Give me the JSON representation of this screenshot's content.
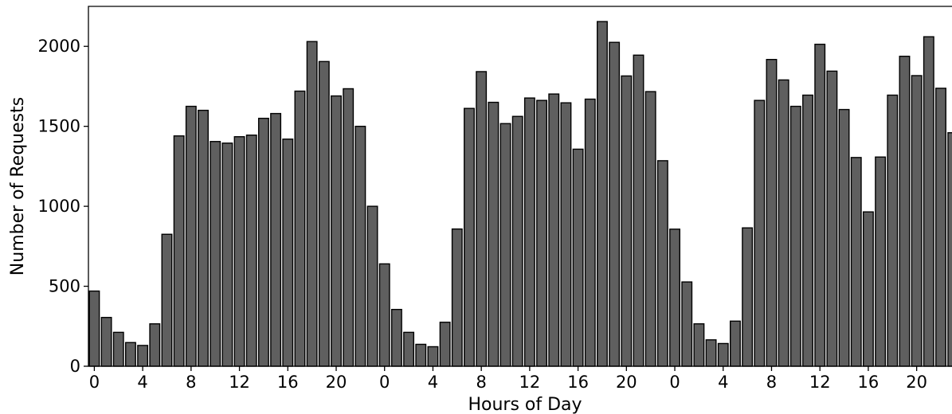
{
  "chart_data": {
    "type": "bar",
    "title": "",
    "xlabel": "Hours of Day",
    "ylabel": "Number of Requests",
    "ylim": [
      0,
      2250
    ],
    "yticks": [
      0,
      500,
      1000,
      1500,
      2000
    ],
    "xtick_labels": [
      "0",
      "4",
      "8",
      "12",
      "16",
      "20",
      "0",
      "4",
      "8",
      "12",
      "16",
      "20",
      "0",
      "4",
      "8",
      "12",
      "16",
      "20"
    ],
    "categories": [
      0,
      1,
      2,
      3,
      4,
      5,
      6,
      7,
      8,
      9,
      10,
      11,
      12,
      13,
      14,
      15,
      16,
      17,
      18,
      19,
      20,
      21,
      22,
      23,
      0,
      1,
      2,
      3,
      4,
      5,
      6,
      7,
      8,
      9,
      10,
      11,
      12,
      13,
      14,
      15,
      16,
      17,
      18,
      19,
      20,
      21,
      22,
      23,
      0,
      1,
      2,
      3,
      4,
      5,
      6,
      7,
      8,
      9,
      10,
      11,
      12,
      13,
      14,
      15,
      16,
      17,
      18,
      19,
      20,
      21,
      22,
      23
    ],
    "values": [
      470,
      305,
      212,
      148,
      130,
      265,
      825,
      1440,
      1625,
      1600,
      1405,
      1395,
      1435,
      1445,
      1550,
      1580,
      1420,
      1720,
      2030,
      1905,
      1690,
      1735,
      1500,
      1000,
      640,
      355,
      212,
      137,
      122,
      275,
      858,
      1612,
      1842,
      1650,
      1517,
      1562,
      1677,
      1662,
      1702,
      1647,
      1357,
      1670,
      2155,
      2025,
      1815,
      1945,
      1717,
      1285,
      857,
      527,
      265,
      165,
      142,
      282,
      865,
      1662,
      1918,
      1790,
      1625,
      1695,
      2013,
      1845,
      1605,
      1305,
      965,
      1308,
      1695,
      1938,
      1817,
      2060,
      1738,
      1460
    ],
    "grid": false,
    "legend": "none",
    "colors": {
      "bar_fill": "#5f5f5f",
      "bar_edge": "#000000"
    }
  }
}
